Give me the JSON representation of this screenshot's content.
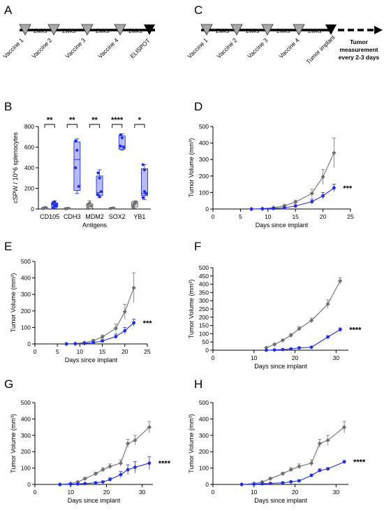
{
  "panels": {
    "A": "A",
    "B": "B",
    "C": "C",
    "D": "D",
    "E": "E",
    "F": "F",
    "G": "G",
    "H": "H"
  },
  "timelineA": {
    "interval_labels": [
      "2wks",
      "2wks",
      "2wks",
      "2wks"
    ],
    "event_labels": [
      "Vaccine 1",
      "Vaccine 2",
      "Vaccine 3",
      "Vaccine 4",
      "ELISPOT"
    ]
  },
  "timelineC": {
    "interval_labels": [
      "2wks",
      "2wks",
      "2wks",
      "2wks"
    ],
    "event_labels": [
      "Vaccine 1",
      "Vaccine 2",
      "Vaccine 3",
      "Vaccine 4",
      "Tumor implant"
    ],
    "measurement_note": [
      "Tumor",
      "measurement",
      "every 2-3 days"
    ]
  },
  "colors": {
    "control": "#707070",
    "vaccine": "#1f2fe0",
    "vaccine_fill": "#b7bcf5"
  },
  "chart_data": [
    {
      "id": "B",
      "type": "box",
      "ylabel": "cSPW / 10^6 splenocytes",
      "xlabel": "Antigens",
      "ylim": [
        0,
        800
      ],
      "yticks": [
        0,
        200,
        400,
        600,
        800
      ],
      "categories": [
        "CD105",
        "CDH3",
        "MDM2",
        "SOX2",
        "YB1"
      ],
      "significance": [
        "**",
        "**",
        "**",
        "****",
        "*"
      ],
      "groups": [
        {
          "series": "control",
          "cat": 0,
          "q1": 5,
          "median": 10,
          "q3": 15,
          "min": 0,
          "max": 20,
          "points": [
            3,
            8,
            12,
            5,
            15,
            10,
            6
          ]
        },
        {
          "series": "vaccine",
          "cat": 0,
          "q1": 20,
          "median": 40,
          "q3": 60,
          "min": 5,
          "max": 80,
          "points": [
            10,
            30,
            45,
            55,
            70,
            25,
            60
          ]
        },
        {
          "series": "control",
          "cat": 1,
          "q1": 3,
          "median": 6,
          "q3": 10,
          "min": 0,
          "max": 12,
          "points": [
            2,
            5,
            8,
            4
          ]
        },
        {
          "series": "vaccine",
          "cat": 1,
          "q1": 180,
          "median": 480,
          "q3": 650,
          "min": 150,
          "max": 680,
          "points": [
            660,
            570,
            220,
            400
          ]
        },
        {
          "series": "control",
          "cat": 2,
          "q1": 5,
          "median": 25,
          "q3": 50,
          "min": 0,
          "max": 80,
          "points": [
            5,
            60,
            30,
            45
          ]
        },
        {
          "series": "vaccine",
          "cat": 2,
          "q1": 130,
          "median": 160,
          "q3": 320,
          "min": 110,
          "max": 380,
          "points": [
            350,
            300,
            170,
            140,
            120
          ]
        },
        {
          "series": "control",
          "cat": 3,
          "q1": 3,
          "median": 6,
          "q3": 10,
          "min": 0,
          "max": 15,
          "points": [
            4,
            8,
            10,
            5
          ]
        },
        {
          "series": "vaccine",
          "cat": 3,
          "q1": 580,
          "median": 610,
          "q3": 710,
          "min": 570,
          "max": 730,
          "points": [
            720,
            690,
            600,
            610
          ]
        },
        {
          "series": "control",
          "cat": 4,
          "q1": 20,
          "median": 50,
          "q3": 70,
          "min": 5,
          "max": 80,
          "points": [
            15,
            60,
            70,
            30,
            50
          ]
        },
        {
          "series": "vaccine",
          "cat": 4,
          "q1": 130,
          "median": 150,
          "q3": 390,
          "min": 90,
          "max": 430,
          "points": [
            430,
            380,
            150,
            110,
            170
          ]
        }
      ]
    },
    {
      "id": "D",
      "type": "line",
      "xlabel": "Days since implant",
      "ylabel": "Tumor Volume (mm³)",
      "xlim": [
        0,
        25
      ],
      "ylim": [
        0,
        500
      ],
      "xticks": [
        0,
        5,
        10,
        15,
        20,
        25
      ],
      "yticks": [
        0,
        100,
        200,
        300,
        400,
        500
      ],
      "significance": "***",
      "series": [
        {
          "key": "control",
          "x": [
            7,
            9,
            11,
            13,
            15,
            18,
            20,
            22
          ],
          "y": [
            0,
            2,
            8,
            20,
            42,
            95,
            195,
            340
          ],
          "err": [
            0,
            1,
            3,
            6,
            12,
            25,
            45,
            90
          ]
        },
        {
          "key": "vaccine",
          "x": [
            7,
            9,
            11,
            13,
            15,
            18,
            20,
            22
          ],
          "y": [
            0,
            1,
            3,
            8,
            18,
            45,
            80,
            128
          ],
          "err": [
            0,
            1,
            2,
            4,
            8,
            15,
            20,
            22
          ]
        }
      ]
    },
    {
      "id": "E",
      "type": "line",
      "xlabel": "Days since implant",
      "ylabel": "Tumor Volume (mm³)",
      "xlim": [
        0,
        25
      ],
      "ylim": [
        0,
        500
      ],
      "xticks": [
        0,
        5,
        10,
        15,
        20,
        25
      ],
      "yticks": [
        0,
        100,
        200,
        300,
        400,
        500
      ],
      "significance": "***",
      "series": [
        {
          "key": "control",
          "x": [
            7,
            9,
            11,
            13,
            15,
            18,
            20,
            22
          ],
          "y": [
            0,
            2,
            8,
            20,
            42,
            95,
            195,
            340
          ],
          "err": [
            0,
            1,
            3,
            6,
            12,
            25,
            45,
            90
          ]
        },
        {
          "key": "vaccine",
          "x": [
            7,
            9,
            11,
            13,
            15,
            18,
            20,
            22
          ],
          "y": [
            0,
            1,
            3,
            8,
            18,
            45,
            80,
            128
          ],
          "err": [
            0,
            1,
            2,
            4,
            8,
            15,
            20,
            22
          ]
        }
      ]
    },
    {
      "id": "F",
      "type": "line",
      "xlabel": "Days since implant",
      "ylabel": "Tumor Volume (mm³)",
      "xlim": [
        0,
        33
      ],
      "ylim": [
        0,
        500
      ],
      "xticks": [
        0,
        10,
        20,
        30
      ],
      "yticks": [
        0,
        50,
        100,
        150,
        200,
        250,
        300,
        350,
        400,
        450,
        500
      ],
      "significance": "****",
      "series": [
        {
          "key": "control",
          "x": [
            13,
            15,
            17,
            19,
            21,
            24,
            28,
            31
          ],
          "y": [
            15,
            35,
            60,
            90,
            130,
            180,
            280,
            420
          ],
          "err": [
            3,
            5,
            7,
            10,
            12,
            15,
            25,
            20
          ]
        },
        {
          "key": "vaccine",
          "x": [
            13,
            15,
            17,
            19,
            21,
            24,
            28,
            31
          ],
          "y": [
            0,
            2,
            4,
            8,
            14,
            18,
            80,
            125
          ],
          "err": [
            0,
            1,
            2,
            3,
            4,
            5,
            8,
            10
          ]
        }
      ]
    },
    {
      "id": "G",
      "type": "line",
      "xlabel": "Days since implant",
      "ylabel": "Tumor Volume (mm³)",
      "xlim": [
        0,
        33
      ],
      "ylim": [
        0,
        500
      ],
      "xticks": [
        0,
        10,
        20,
        30
      ],
      "yticks": [
        0,
        100,
        200,
        300,
        400,
        500
      ],
      "significance": "****",
      "series": [
        {
          "key": "control",
          "x": [
            7,
            10,
            12,
            14,
            17,
            19,
            21,
            24,
            26,
            28,
            32
          ],
          "y": [
            0,
            5,
            15,
            35,
            65,
            90,
            110,
            130,
            250,
            270,
            350
          ],
          "err": [
            0,
            2,
            4,
            8,
            10,
            12,
            15,
            20,
            25,
            30,
            35
          ]
        },
        {
          "key": "vaccine",
          "x": [
            7,
            10,
            12,
            14,
            17,
            19,
            21,
            24,
            26,
            28,
            32
          ],
          "y": [
            0,
            2,
            3,
            5,
            10,
            15,
            30,
            60,
            90,
            105,
            130
          ],
          "err": [
            0,
            1,
            2,
            3,
            5,
            7,
            10,
            20,
            30,
            35,
            40
          ]
        }
      ]
    },
    {
      "id": "H",
      "type": "line",
      "xlabel": "Days since implant",
      "ylabel": "Tumor Volume (mm³)",
      "xlim": [
        0,
        33
      ],
      "ylim": [
        0,
        500
      ],
      "xticks": [
        0,
        10,
        20,
        30
      ],
      "yticks": [
        0,
        100,
        200,
        300,
        400,
        500
      ],
      "significance": "****",
      "series": [
        {
          "key": "control",
          "x": [
            7,
            10,
            12,
            14,
            17,
            19,
            21,
            24,
            26,
            28,
            32
          ],
          "y": [
            0,
            5,
            15,
            35,
            65,
            90,
            110,
            130,
            250,
            270,
            350
          ],
          "err": [
            0,
            2,
            4,
            8,
            10,
            12,
            15,
            20,
            25,
            30,
            35
          ]
        },
        {
          "key": "vaccine",
          "x": [
            7,
            10,
            12,
            14,
            17,
            19,
            21,
            24,
            26,
            28,
            32
          ],
          "y": [
            0,
            2,
            4,
            6,
            10,
            16,
            22,
            55,
            85,
            95,
            138
          ],
          "err": [
            0,
            1,
            2,
            3,
            4,
            5,
            6,
            8,
            10,
            8,
            8
          ]
        }
      ]
    }
  ]
}
